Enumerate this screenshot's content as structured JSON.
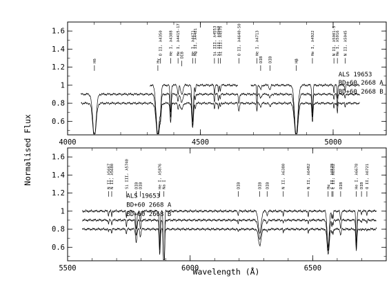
{
  "chart_data": {
    "type": "line",
    "xlabel": "Wavelength (Å)",
    "ylabel": "Normalised Flux",
    "panels": [
      {
        "xlim": [
          4000,
          5200
        ],
        "ylim": [
          0.45,
          1.7
        ],
        "xticks": [
          4000,
          4500,
          5000
        ],
        "yticks": [
          "0.6",
          "0.8",
          "1",
          "1.2",
          "1.4",
          "1.6"
        ],
        "series": [
          {
            "name": "ALS 19653",
            "offset": 0.0,
            "segments": [
              [
                4310,
                4640
              ],
              [
                4690,
                5100
              ]
            ]
          },
          {
            "name": "BD+60 2668 A",
            "offset": -0.1,
            "segments": [
              [
                4050,
                5100
              ]
            ]
          },
          {
            "name": "BD+60 2668 B",
            "offset": -0.2,
            "segments": [
              [
                4050,
                5100
              ]
            ]
          }
        ],
        "legend": [
          {
            "name": "ALS 19653",
            "x": 5020,
            "y": 1.12
          },
          {
            "name": "BD+60 2668  A",
            "x": 5020,
            "y": 1.03
          },
          {
            "name": "BD+60 2668  B",
            "x": 5020,
            "y": 0.93
          }
        ],
        "lines": [
          {
            "label": "Hδ",
            "wl": 4101,
            "depth": 0.55,
            "width": 9,
            "tick": 1.16
          },
          {
            "label": "Hγ",
            "wl": 4340,
            "depth": 0.55,
            "width": 9,
            "tick": 1.16
          },
          {
            "label": "O II, λ4350",
            "wl": 4350,
            "depth": 0.15,
            "width": 3,
            "tick": 1.24
          },
          {
            "label": "He I, λ4388",
            "wl": 4388,
            "depth": 0.3,
            "width": 3,
            "tick": 1.24
          },
          {
            "label": "He I, λ4415-17",
            "wl": 4416,
            "depth": 0.1,
            "width": 3,
            "tick": 1.24
          },
          {
            "label": "DIB",
            "wl": 4430,
            "depth": 0.1,
            "width": 6,
            "tick": 1.21
          },
          {
            "label": "He I, λ4471",
            "wl": 4471,
            "depth": 0.4,
            "width": 4,
            "tick": 1.24
          },
          {
            "label": "Mg II, λ4481",
            "wl": 4481,
            "depth": 0.08,
            "width": 2,
            "tick": 1.24
          },
          {
            "label": "Si III, λ4553",
            "wl": 4553,
            "depth": 0.1,
            "width": 2,
            "tick": 1.24
          },
          {
            "label": "Si III, λ4568",
            "wl": 4568,
            "depth": 0.08,
            "width": 2,
            "tick": 1.24
          },
          {
            "label": "Si III, λ4575",
            "wl": 4575,
            "depth": 0.06,
            "width": 2,
            "tick": 1.24
          },
          {
            "label": "O II, λ4640-50",
            "wl": 4645,
            "depth": 0.12,
            "width": 3,
            "tick": 1.24
          },
          {
            "label": "He I, λ4713",
            "wl": 4713,
            "depth": 0.12,
            "width": 2,
            "tick": 1.24
          },
          {
            "label": "DIB",
            "wl": 4727,
            "depth": 0.05,
            "width": 4,
            "tick": 1.16
          },
          {
            "label": "DIB",
            "wl": 4762,
            "depth": 0.05,
            "width": 4,
            "tick": 1.16
          },
          {
            "label": "Hβ",
            "wl": 4861,
            "depth": 0.55,
            "width": 9,
            "tick": 1.16
          },
          {
            "label": "He I, λ4922",
            "wl": 4922,
            "depth": 0.3,
            "width": 3,
            "tick": 1.24
          },
          {
            "label": "N II, λ5001-5",
            "wl": 5003,
            "depth": 0.08,
            "width": 2,
            "tick": 1.24
          },
          {
            "label": "He I, λ5016",
            "wl": 5016,
            "depth": 0.15,
            "width": 2,
            "tick": 1.24
          },
          {
            "label": "N II, λ5045",
            "wl": 5045,
            "depth": 0.06,
            "width": 2,
            "tick": 1.24
          }
        ]
      },
      {
        "xlim": [
          5500,
          6800
        ],
        "ylim": [
          0.45,
          1.7
        ],
        "xticks": [
          5500,
          6000,
          6500
        ],
        "yticks": [
          "0.6",
          "0.8",
          "1",
          "1.2",
          "1.4",
          "1.6"
        ],
        "series": [
          {
            "name": "ALS 19653",
            "offset": 0.0,
            "segments": [
              [
                5560,
                6760
              ]
            ]
          },
          {
            "name": "BD+60 2668 A",
            "offset": -0.1,
            "segments": [
              [
                5560,
                6760
              ]
            ]
          },
          {
            "name": "BD+60 2668 B",
            "offset": -0.2,
            "segments": [
              [
                5560,
                6760
              ]
            ]
          }
        ],
        "legend": [
          {
            "name": "ALS 19653",
            "x": 5740,
            "y": 1.17
          },
          {
            "name": "BD+60 2668  A",
            "x": 5740,
            "y": 1.07
          },
          {
            "name": "BD+60 2668  B",
            "x": 5740,
            "y": 0.97
          }
        ],
        "lines": [
          {
            "label": "N II, λ5667",
            "wl": 5667,
            "depth": 0.05,
            "width": 2,
            "tick": 1.16
          },
          {
            "label": "N II, λ5680",
            "wl": 5680,
            "depth": 0.06,
            "width": 2,
            "tick": 1.16
          },
          {
            "label": "Si III, λ5740",
            "wl": 5740,
            "depth": 0.08,
            "width": 2,
            "tick": 1.16
          },
          {
            "label": "DIB",
            "wl": 5780,
            "depth": 0.2,
            "width": 4,
            "tick": 1.16
          },
          {
            "label": "DIB",
            "wl": 5797,
            "depth": 0.12,
            "width": 3,
            "tick": 1.16
          },
          {
            "label": "He I, λ5876",
            "wl": 5876,
            "depth": 0.4,
            "width": 3,
            "tick": 1.16
          },
          {
            "label": "Na I",
            "wl": 5893,
            "depth": 1.1,
            "width": 3,
            "tick": 1.16
          },
          {
            "label": "DIB",
            "wl": 6196,
            "depth": 0.05,
            "width": 2,
            "tick": 1.16
          },
          {
            "label": "DIB",
            "wl": 6284,
            "depth": 0.25,
            "width": 8,
            "tick": 1.16
          },
          {
            "label": "DIB",
            "wl": 6314,
            "depth": 0.04,
            "width": 4,
            "tick": 1.16
          },
          {
            "label": "N II, λ6380",
            "wl": 6380,
            "depth": 0.05,
            "width": 2,
            "tick": 1.16
          },
          {
            "label": "N II, λ6482",
            "wl": 6482,
            "depth": 0.06,
            "width": 2,
            "tick": 1.16
          },
          {
            "label": "Hα",
            "wl": 6563,
            "depth": 0.4,
            "width": 6,
            "tick": 1.16
          },
          {
            "label": "C II, λ6578",
            "wl": 6578,
            "depth": 0.08,
            "width": 2,
            "tick": 1.16
          },
          {
            "label": "C II, λ6582",
            "wl": 6583,
            "depth": 0.08,
            "width": 2,
            "tick": 1.16
          },
          {
            "label": "DIB",
            "wl": 6614,
            "depth": 0.1,
            "width": 3,
            "tick": 1.16
          },
          {
            "label": "He I, λ6678",
            "wl": 6678,
            "depth": 0.35,
            "width": 3,
            "tick": 1.16
          },
          {
            "label": "DIB",
            "wl": 6699,
            "depth": 0.03,
            "width": 2,
            "tick": 1.16
          },
          {
            "label": "O II, λ6721",
            "wl": 6721,
            "depth": 0.04,
            "width": 2,
            "tick": 1.16
          }
        ]
      }
    ]
  }
}
